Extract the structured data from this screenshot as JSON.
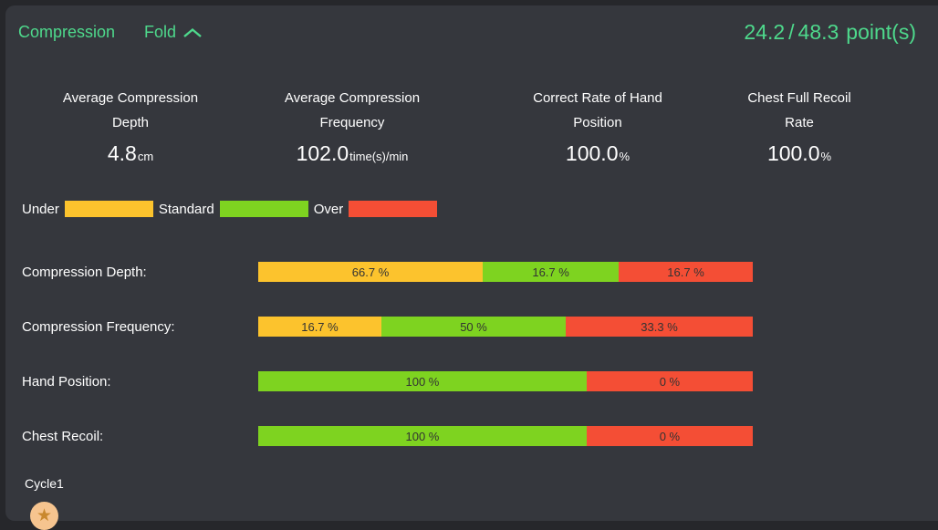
{
  "header": {
    "title": "Compression",
    "fold_label": "Fold",
    "score": "24.2",
    "separator": "/",
    "total": "48.3",
    "unit": "point(s)"
  },
  "metrics": [
    {
      "title": [
        "Average Compression",
        "Depth"
      ],
      "value": "4.8",
      "unit": "cm"
    },
    {
      "title": [
        "Average Compression",
        "Frequency"
      ],
      "value": "102.0",
      "unit": "time(s)/min"
    },
    {
      "title": [
        "Correct Rate of Hand",
        "Position"
      ],
      "value": "100.0",
      "unit": "%"
    },
    {
      "title": [
        "Chest Full Recoil",
        "Rate"
      ],
      "value": "100.0",
      "unit": "%"
    }
  ],
  "legend": [
    {
      "label": "Under",
      "color": "#fcc32d"
    },
    {
      "label": "Standard",
      "color": "#7ed320"
    },
    {
      "label": "Over",
      "color": "#f44e35"
    }
  ],
  "chart_data": {
    "type": "bar",
    "subtype": "horizontal-stacked-percent",
    "title": "Compression",
    "categories": [
      "Compression Depth:",
      "Compression Frequency:",
      "Hand Position:",
      "Chest Recoil:"
    ],
    "series": [
      {
        "name": "Under",
        "color": "#fcc32d",
        "values": [
          66.7,
          16.7,
          null,
          null
        ]
      },
      {
        "name": "Standard",
        "color": "#7ed320",
        "values": [
          16.7,
          50,
          100,
          100
        ]
      },
      {
        "name": "Over",
        "color": "#f44e35",
        "values": [
          16.7,
          33.3,
          0,
          0
        ]
      }
    ],
    "legend_position": "top-left",
    "value_suffix": "%",
    "rows": [
      {
        "label": "Compression Depth:",
        "segments": [
          {
            "series": "Under",
            "value": 66.7,
            "text": "66.7 %",
            "color": "#fcc32d",
            "width_pct": 45.4
          },
          {
            "series": "Standard",
            "value": 16.7,
            "text": "16.7 %",
            "color": "#7ed320",
            "width_pct": 27.5
          },
          {
            "series": "Over",
            "value": 16.7,
            "text": "16.7 %",
            "color": "#f44e35",
            "width_pct": 27.1
          }
        ]
      },
      {
        "label": "Compression Frequency:",
        "segments": [
          {
            "series": "Under",
            "value": 16.7,
            "text": "16.7 %",
            "color": "#fcc32d",
            "width_pct": 24.9
          },
          {
            "series": "Standard",
            "value": 50,
            "text": "50 %",
            "color": "#7ed320",
            "width_pct": 37.3
          },
          {
            "series": "Over",
            "value": 33.3,
            "text": "33.3 %",
            "color": "#f44e35",
            "width_pct": 37.8
          }
        ]
      },
      {
        "label": "Hand Position:",
        "segments": [
          {
            "series": "Standard",
            "value": 100,
            "text": "100 %",
            "color": "#7ed320",
            "width_pct": 66.4
          },
          {
            "series": "Over",
            "value": 0,
            "text": "0 %",
            "color": "#f44e35",
            "width_pct": 33.6
          }
        ]
      },
      {
        "label": "Chest Recoil:",
        "segments": [
          {
            "series": "Standard",
            "value": 100,
            "text": "100 %",
            "color": "#7ed320",
            "width_pct": 66.4
          },
          {
            "series": "Over",
            "value": 0,
            "text": "0 %",
            "color": "#f44e35",
            "width_pct": 33.6
          }
        ]
      }
    ]
  },
  "footer": {
    "cycle_label": "Cycle1",
    "badge_icon": "star"
  },
  "colors": {
    "accent_green": "#4ed98c",
    "panel_bg": "#35373d",
    "outer_bg": "#26272b",
    "bar_text": "#333333",
    "badge_bg": "#f6c48f",
    "badge_star": "#c9882e"
  }
}
